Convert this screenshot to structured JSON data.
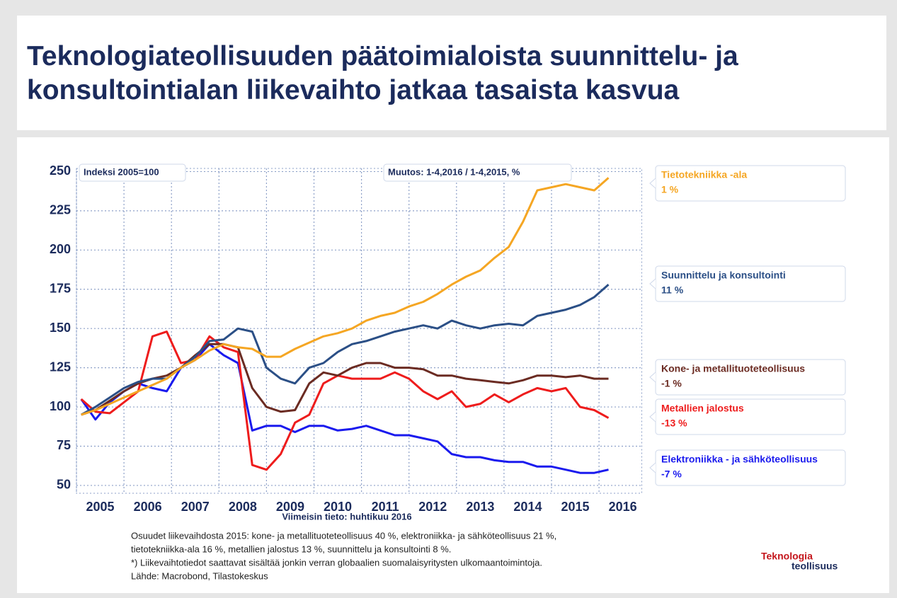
{
  "chart_data": {
    "type": "line",
    "title": "Teknologiateollisuuden päätoimialoista suunnittelu- ja konsultointialan liikevaihto jatkaa tasaista kasvua",
    "annotations": [
      "Indeksi 2005=100",
      "Muutos: 1-4,2016 / 1-4,2015, %"
    ],
    "source_note": "Viimeisin tieto: huhtikuu 2016",
    "footnotes": [
      "Osuudet liikevaihdosta 2015: kone- ja metallituoteteollisuus 40 %, elektroniikka- ja sähköteollisuus 21 %,",
      "tietotekniikka-ala 16 %, metallien jalostus 13 %, suunnittelu ja konsultointi 8 %.",
      "*) Liikevaihtotiedot saattavat sisältää jonkin verran globaalien suomalaisyritysten ulkomaantoimintoja.",
      "Lähde: Macrobond, Tilastokeskus"
    ],
    "logo": [
      "Teknologia",
      "teollisuus"
    ],
    "x": [
      2005.1,
      2005.4,
      2005.7,
      2006.0,
      2006.3,
      2006.6,
      2006.9,
      2007.2,
      2007.5,
      2007.8,
      2008.1,
      2008.4,
      2008.7,
      2009.0,
      2009.3,
      2009.6,
      2009.9,
      2010.2,
      2010.5,
      2010.8,
      2011.1,
      2011.4,
      2011.7,
      2012.0,
      2012.3,
      2012.6,
      2012.9,
      2013.2,
      2013.5,
      2013.8,
      2014.1,
      2014.4,
      2014.7,
      2015.0,
      2015.3,
      2015.6,
      2015.9,
      2016.2
    ],
    "series": [
      {
        "name": "Tietotekniikka -ala",
        "change": "1 %",
        "color": "#f5a623",
        "values": [
          95,
          98,
          102,
          106,
          110,
          114,
          118,
          125,
          130,
          136,
          140,
          138,
          137,
          132,
          132,
          137,
          141,
          145,
          147,
          150,
          155,
          158,
          160,
          164,
          167,
          172,
          178,
          183,
          187,
          195,
          202,
          218,
          238,
          240,
          242,
          240,
          238,
          246
        ]
      },
      {
        "name": "Suunnittelu ja konsultointi",
        "change": "11 %",
        "color": "#2b4f86",
        "values": [
          95,
          100,
          106,
          112,
          116,
          118,
          118,
          125,
          132,
          142,
          143,
          150,
          148,
          125,
          118,
          115,
          125,
          128,
          135,
          140,
          142,
          145,
          148,
          150,
          152,
          150,
          155,
          152,
          150,
          152,
          153,
          152,
          158,
          160,
          162,
          165,
          170,
          178
        ]
      },
      {
        "name": "Kone- ja metallituoteteollisuus",
        "change": "-1 %",
        "color": "#6b2b22",
        "values": [
          95,
          98,
          104,
          110,
          115,
          118,
          120,
          125,
          133,
          140,
          140,
          138,
          112,
          100,
          97,
          98,
          115,
          122,
          120,
          125,
          128,
          128,
          125,
          125,
          124,
          120,
          120,
          118,
          117,
          116,
          115,
          117,
          120,
          120,
          119,
          120,
          118,
          118
        ]
      },
      {
        "name": "Metallien jalostus",
        "change": "-13 %",
        "color": "#ee1c1c",
        "values": [
          105,
          97,
          96,
          103,
          110,
          145,
          148,
          128,
          130,
          145,
          138,
          135,
          63,
          60,
          70,
          90,
          95,
          115,
          120,
          118,
          118,
          118,
          122,
          118,
          110,
          105,
          110,
          100,
          102,
          108,
          103,
          108,
          112,
          110,
          112,
          100,
          98,
          93
        ]
      },
      {
        "name": "Elektroniikka - ja sähköteollisuus",
        "change": "-7 %",
        "color": "#1a1aee",
        "values": [
          105,
          92,
          103,
          110,
          115,
          112,
          110,
          125,
          130,
          140,
          133,
          128,
          85,
          88,
          88,
          84,
          88,
          88,
          85,
          86,
          88,
          85,
          82,
          82,
          80,
          78,
          70,
          68,
          68,
          66,
          65,
          65,
          62,
          62,
          60,
          58,
          58,
          60
        ]
      }
    ],
    "xlim": [
      2005,
      2016.9
    ],
    "xticks": [
      2005,
      2006,
      2007,
      2008,
      2009,
      2010,
      2011,
      2012,
      2013,
      2014,
      2015,
      2016
    ],
    "ylim": [
      45,
      252
    ],
    "yticks": [
      50,
      75,
      100,
      125,
      150,
      175,
      200,
      225,
      250
    ],
    "grid": true
  }
}
